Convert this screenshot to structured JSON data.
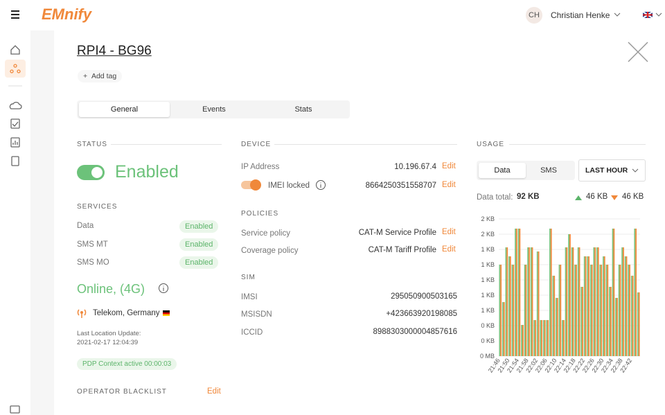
{
  "header": {
    "logo": "EMnify",
    "avatar": "CH",
    "user": "Christian Henke"
  },
  "device": {
    "title": "RPI4 - BG96",
    "add_tag": "Add tag",
    "tabs": [
      "General",
      "Events",
      "Stats"
    ]
  },
  "status": {
    "heading": "STATUS",
    "state": "Enabled",
    "services_heading": "SERVICES",
    "services": [
      {
        "name": "Data",
        "state": "Enabled"
      },
      {
        "name": "SMS MT",
        "state": "Enabled"
      },
      {
        "name": "SMS MO",
        "state": "Enabled"
      }
    ],
    "online": "Online, (4G)",
    "operator": "Telekom, Germany",
    "location_label": "Last Location Update:",
    "location_time": "2021-02-17 12:04:39",
    "pdp": "PDP Context active 00:00:03",
    "blacklist": "OPERATOR BLACKLIST",
    "edit": "Edit"
  },
  "device_info": {
    "heading": "DEVICE",
    "ip_label": "IP Address",
    "ip": "10.196.67.4",
    "imei_label": "IMEI locked",
    "imei": "8664250351558707",
    "edit": "Edit",
    "policies_heading": "POLICIES",
    "policies": [
      {
        "label": "Service policy",
        "value": "CAT-M Service Profile"
      },
      {
        "label": "Coverage policy",
        "value": "CAT-M Tariff Profile"
      }
    ],
    "sim_heading": "SIM",
    "sim": [
      {
        "label": "IMSI",
        "value": "295050900503165"
      },
      {
        "label": "MSISDN",
        "value": "+423663920198085"
      },
      {
        "label": "ICCID",
        "value": "8988303000004857616"
      }
    ]
  },
  "usage": {
    "heading": "USAGE",
    "tabs": [
      "Data",
      "SMS"
    ],
    "range": "LAST HOUR",
    "total_label": "Data total:",
    "total": "92 KB",
    "up": "46 KB",
    "down": "46 KB"
  },
  "chart_data": {
    "type": "bar",
    "categories": [
      "21:46",
      null,
      null,
      "21:50",
      null,
      null,
      "21:54",
      null,
      null,
      "21:58",
      null,
      null,
      "22:02",
      null,
      null,
      "22:06",
      null,
      null,
      "22:10",
      null,
      null,
      "22:14",
      null,
      null,
      "22:18",
      null,
      null,
      "22:22",
      null,
      null,
      "22:26",
      null,
      null,
      "22:30",
      null,
      null,
      "22:34",
      null,
      null,
      "22:38",
      null,
      null,
      "22:42",
      null,
      null
    ],
    "series": [
      {
        "color": "#7cc47f",
        "values": [
          1200,
          709,
          1427,
          1309,
          1200,
          1673,
          1673,
          409,
          1200,
          1427,
          1427,
          473,
          1373,
          473,
          473,
          473,
          1673,
          1055,
          764,
          1200,
          473,
          1427,
          1600,
          1427,
          1200,
          1427,
          909,
          1309,
          1309,
          1200,
          1427,
          1427,
          1200,
          1309,
          1200,
          909,
          1673,
          764,
          1200,
          1427,
          1309,
          1200,
          1055,
          1673,
          836
        ]
      },
      {
        "color": "#f0883a",
        "values": [
          1200,
          709,
          1427,
          1309,
          1200,
          1673,
          1673,
          409,
          1200,
          1427,
          1427,
          473,
          1373,
          473,
          473,
          473,
          1673,
          1055,
          764,
          1200,
          473,
          1427,
          1600,
          1427,
          1200,
          1427,
          909,
          1309,
          1309,
          1200,
          1427,
          1427,
          1200,
          1309,
          1200,
          909,
          1673,
          764,
          1200,
          1427,
          1309,
          1200,
          1055,
          1673,
          836
        ]
      }
    ],
    "ylim": [
      0,
      1800
    ],
    "yticks": [
      {
        "value": 0,
        "label": "0 MB"
      },
      {
        "value": 200,
        "label": "0 KB"
      },
      {
        "value": 400,
        "label": "0 KB"
      },
      {
        "value": 600,
        "label": "1 KB"
      },
      {
        "value": 800,
        "label": "1 KB"
      },
      {
        "value": 1000,
        "label": "1 KB"
      },
      {
        "value": 1200,
        "label": "1 KB"
      },
      {
        "value": 1400,
        "label": "1 KB"
      },
      {
        "value": 1600,
        "label": "2 KB"
      },
      {
        "value": 1800,
        "label": "2 KB"
      }
    ],
    "grid": true
  }
}
